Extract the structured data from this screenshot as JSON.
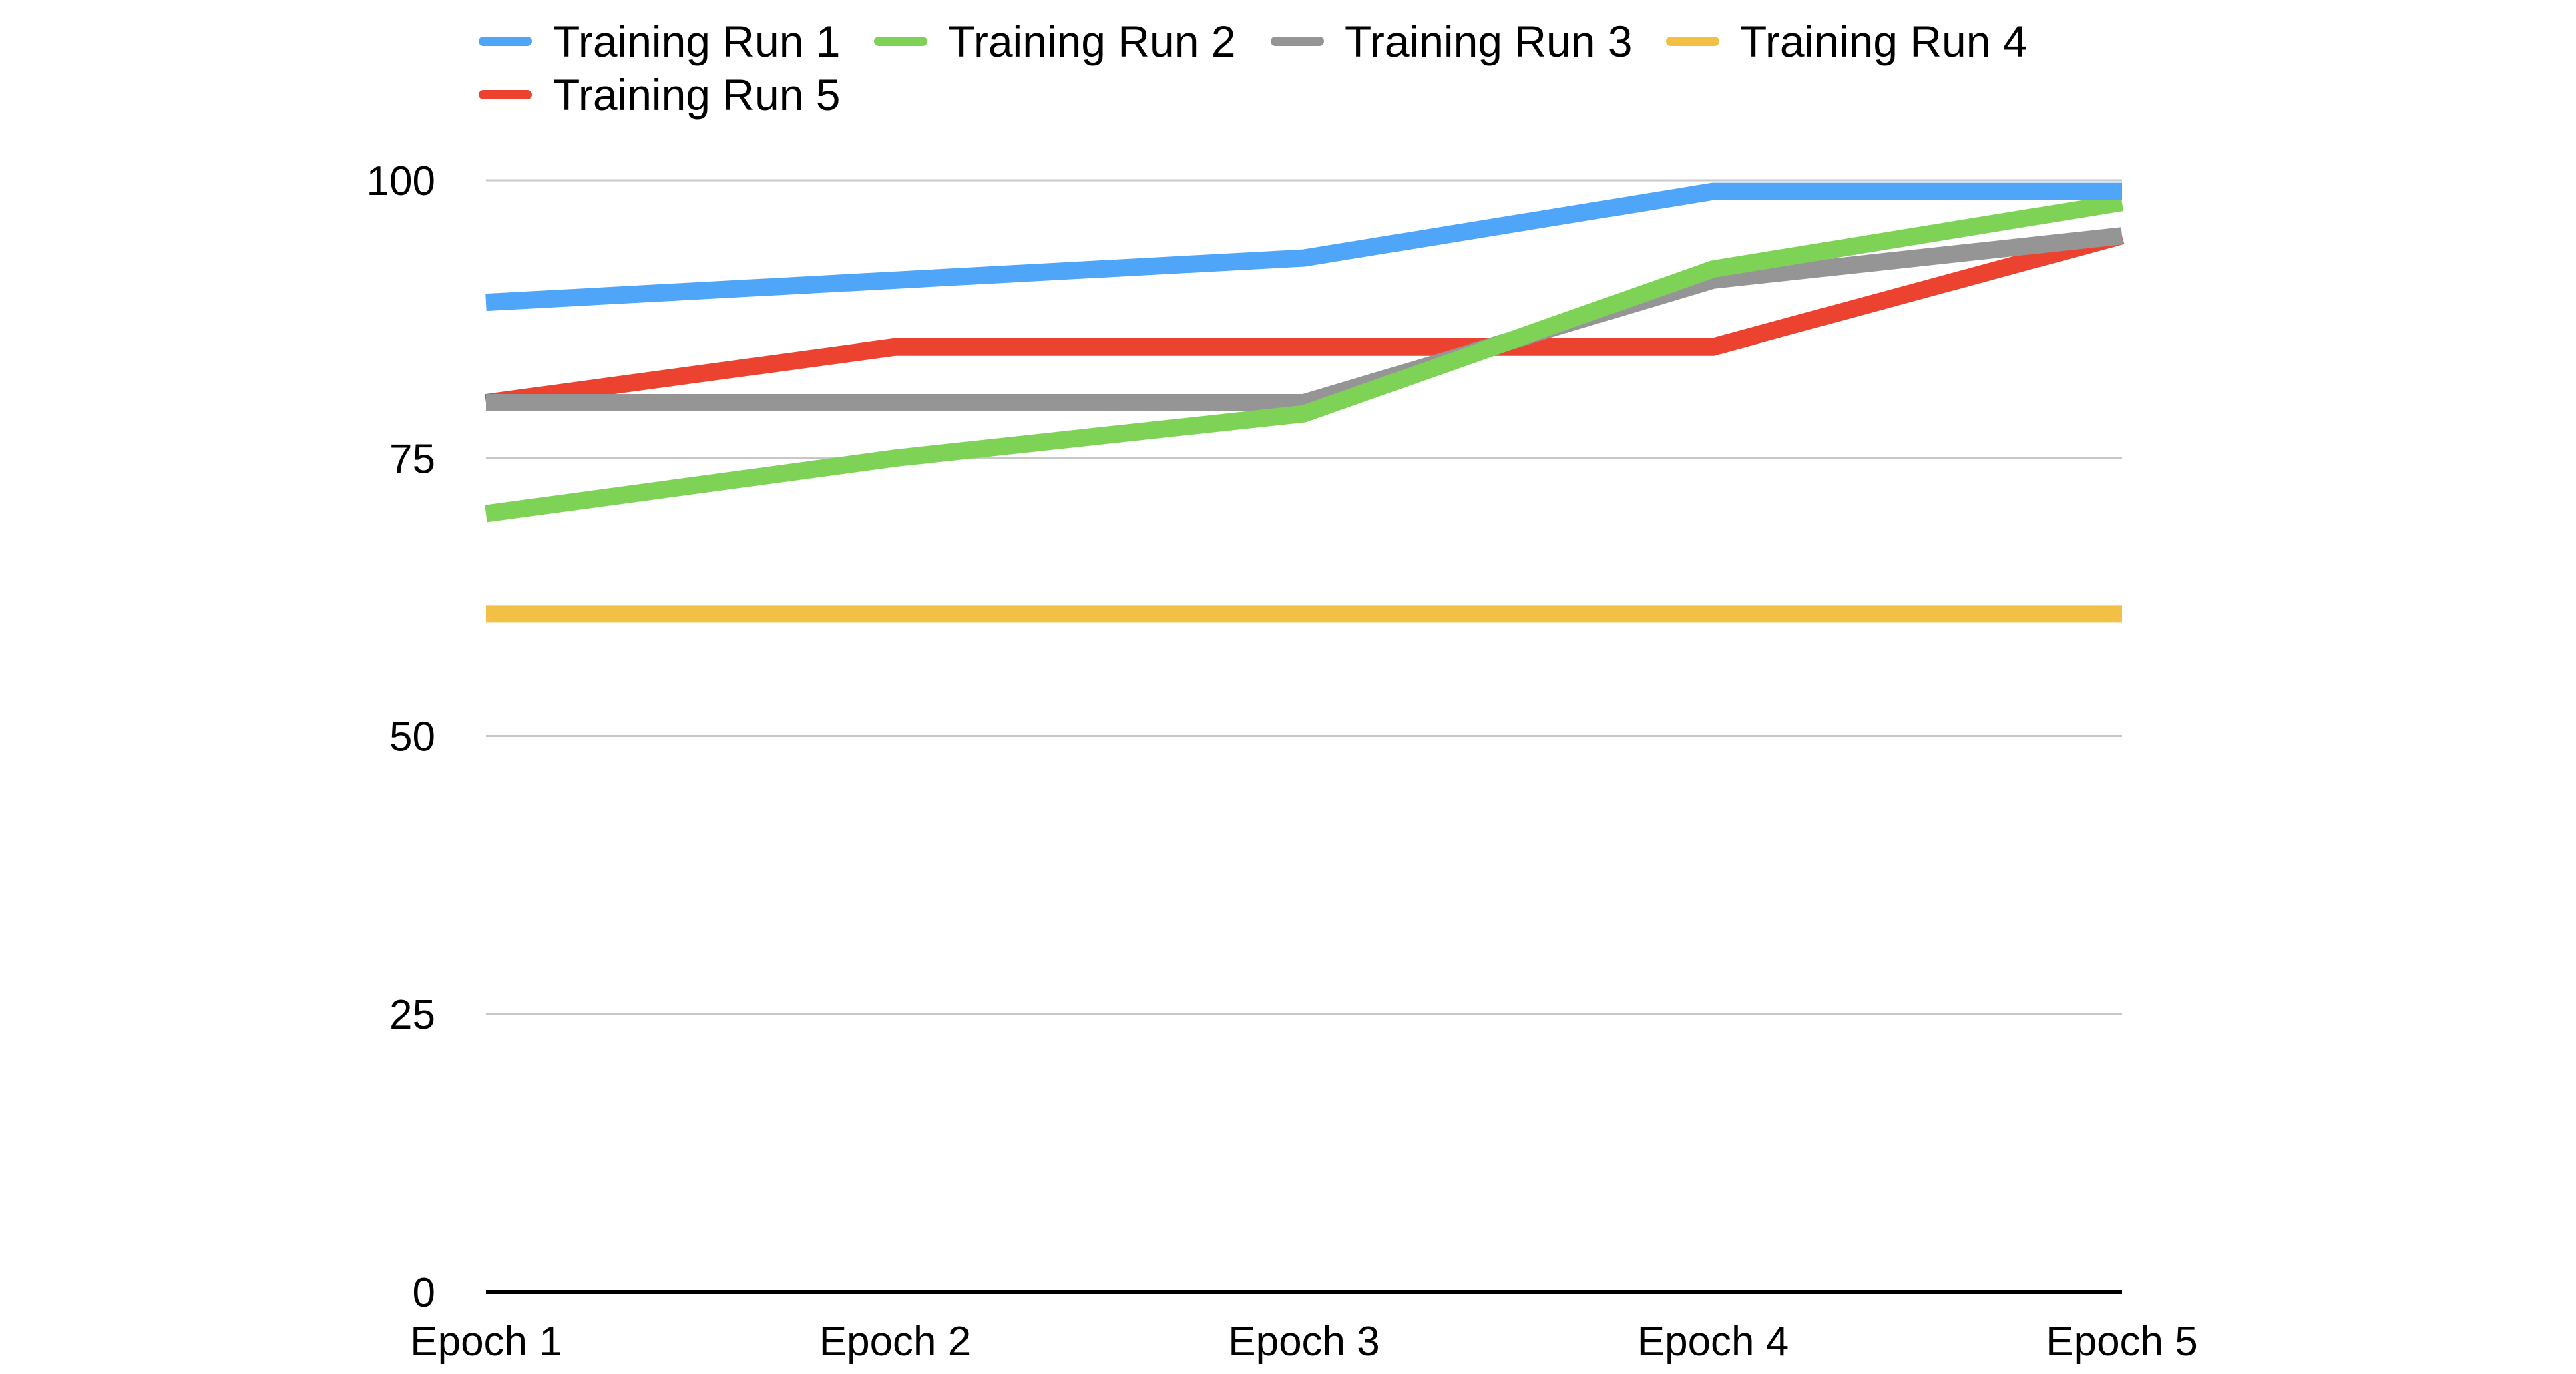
{
  "chart_data": {
    "type": "line",
    "title": "",
    "xlabel": "",
    "ylabel": "",
    "categories": [
      "Epoch 1",
      "Epoch 2",
      "Epoch 3",
      "Epoch 4",
      "Epoch 5"
    ],
    "ylim": [
      0,
      100
    ],
    "yticks": [
      "0",
      "25",
      "50",
      "75",
      "100"
    ],
    "grid": true,
    "legend_position": "top-left",
    "series": [
      {
        "name": "Training Run 1",
        "color": "#4fa5f7",
        "values": [
          89,
          91,
          93,
          99,
          99
        ]
      },
      {
        "name": "Training Run 2",
        "color": "#7ed357",
        "values": [
          70,
          75,
          79,
          92,
          98
        ]
      },
      {
        "name": "Training Run 3",
        "color": "#959595",
        "values": [
          80,
          80,
          80,
          91,
          95
        ]
      },
      {
        "name": "Training Run 4",
        "color": "#f2c044",
        "values": [
          61,
          61,
          61,
          61,
          61
        ]
      },
      {
        "name": "Training Run 5",
        "color": "#ec4330",
        "values": [
          80,
          85,
          85,
          85,
          95
        ]
      }
    ]
  }
}
